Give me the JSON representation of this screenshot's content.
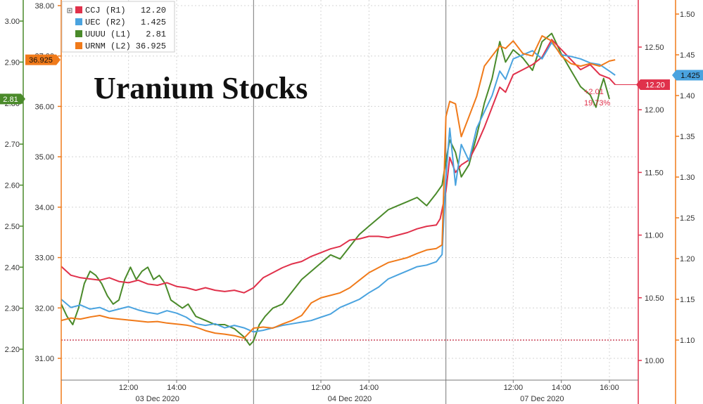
{
  "chart_data": {
    "type": "line",
    "title": "Uranium Stocks",
    "x_labels": [
      {
        "time": "12:00",
        "day": "03 Dec 2020",
        "x": 0.35
      },
      {
        "time": "14:00",
        "day": "03 Dec 2020",
        "x": 0.6
      },
      {
        "time": "12:00",
        "day": "04 Dec 2020",
        "x": 1.35
      },
      {
        "time": "14:00",
        "day": "04 Dec 2020",
        "x": 1.6
      },
      {
        "time": "12:00",
        "day": "07 Dec 2020",
        "x": 2.35
      },
      {
        "time": "14:00",
        "day": "07 Dec 2020",
        "x": 2.6
      },
      {
        "time": "16:00",
        "day": "07 Dec 2020",
        "x": 2.85
      }
    ],
    "day_labels": [
      {
        "label": "03 Dec 2020",
        "x": 0.5
      },
      {
        "label": "04 Dec 2020",
        "x": 1.5
      },
      {
        "label": "07 Dec 2020",
        "x": 2.5
      }
    ],
    "day_boundaries": [
      0,
      1,
      2,
      3
    ],
    "x_range": [
      0,
      3
    ],
    "grid": true,
    "legend_position": "top-left",
    "axes": {
      "L1": {
        "side": "left",
        "color": "#4a8a2a",
        "range": [
          2.15,
          3.05
        ],
        "ticks": [
          "2.20",
          "2.30",
          "2.40",
          "2.50",
          "2.60",
          "2.70",
          "2.80",
          "2.90",
          "3.00"
        ]
      },
      "L2": {
        "side": "left",
        "color": "#f07a1a",
        "range": [
          30.75,
          38.1
        ],
        "ticks": [
          "31.00",
          "32.00",
          "33.00",
          "34.00",
          "35.00",
          "36.00",
          "37.00",
          "38.00"
        ]
      },
      "R1": {
        "side": "right",
        "color": "#e0314b",
        "range": [
          9.93,
          12.75
        ],
        "ticks": [
          "10.00",
          "10.50",
          "11.00",
          "11.50",
          "12.00",
          "12.50"
        ]
      },
      "R2": {
        "side": "right",
        "color": "#f07a1a",
        "range": [
          1.04,
          1.52
        ],
        "ticks": [
          "1.10",
          "1.15",
          "1.20",
          "1.25",
          "1.30",
          "1.35",
          "1.40",
          "1.45",
          "1.50"
        ]
      }
    },
    "series": [
      {
        "name": "CCJ (R1)",
        "legend_value": "12.20",
        "axis": "R1",
        "color": "#e0314b",
        "points": [
          [
            0.0,
            10.75
          ],
          [
            0.05,
            10.68
          ],
          [
            0.1,
            10.66
          ],
          [
            0.15,
            10.65
          ],
          [
            0.2,
            10.64
          ],
          [
            0.25,
            10.66
          ],
          [
            0.3,
            10.63
          ],
          [
            0.35,
            10.62
          ],
          [
            0.4,
            10.64
          ],
          [
            0.45,
            10.61
          ],
          [
            0.5,
            10.6
          ],
          [
            0.55,
            10.62
          ],
          [
            0.6,
            10.59
          ],
          [
            0.65,
            10.58
          ],
          [
            0.7,
            10.56
          ],
          [
            0.75,
            10.58
          ],
          [
            0.8,
            10.56
          ],
          [
            0.85,
            10.55
          ],
          [
            0.9,
            10.56
          ],
          [
            0.95,
            10.54
          ],
          [
            1.0,
            10.58
          ],
          [
            1.05,
            10.66
          ],
          [
            1.1,
            10.7
          ],
          [
            1.15,
            10.74
          ],
          [
            1.2,
            10.77
          ],
          [
            1.25,
            10.79
          ],
          [
            1.3,
            10.83
          ],
          [
            1.35,
            10.86
          ],
          [
            1.4,
            10.89
          ],
          [
            1.45,
            10.91
          ],
          [
            1.5,
            10.96
          ],
          [
            1.55,
            10.97
          ],
          [
            1.6,
            10.99
          ],
          [
            1.65,
            10.99
          ],
          [
            1.7,
            10.98
          ],
          [
            1.75,
            11.0
          ],
          [
            1.8,
            11.02
          ],
          [
            1.85,
            11.05
          ],
          [
            1.9,
            11.07
          ],
          [
            1.95,
            11.08
          ],
          [
            1.97,
            11.13
          ],
          [
            2.0,
            11.35
          ],
          [
            2.02,
            11.62
          ],
          [
            2.05,
            11.5
          ],
          [
            2.08,
            11.56
          ],
          [
            2.12,
            11.6
          ],
          [
            2.16,
            11.72
          ],
          [
            2.2,
            11.86
          ],
          [
            2.24,
            12.02
          ],
          [
            2.28,
            12.18
          ],
          [
            2.31,
            12.14
          ],
          [
            2.35,
            12.28
          ],
          [
            2.4,
            12.32
          ],
          [
            2.45,
            12.36
          ],
          [
            2.5,
            12.42
          ],
          [
            2.55,
            12.56
          ],
          [
            2.6,
            12.48
          ],
          [
            2.65,
            12.4
          ],
          [
            2.7,
            12.32
          ],
          [
            2.75,
            12.36
          ],
          [
            2.8,
            12.28
          ],
          [
            2.85,
            12.25
          ],
          [
            2.88,
            12.2
          ]
        ]
      },
      {
        "name": "UEC (R2)",
        "legend_value": "1.425",
        "axis": "R2",
        "color": "#4aa3df",
        "points": [
          [
            0.0,
            1.15
          ],
          [
            0.05,
            1.14
          ],
          [
            0.1,
            1.143
          ],
          [
            0.15,
            1.138
          ],
          [
            0.2,
            1.14
          ],
          [
            0.25,
            1.135
          ],
          [
            0.3,
            1.138
          ],
          [
            0.35,
            1.141
          ],
          [
            0.4,
            1.137
          ],
          [
            0.45,
            1.134
          ],
          [
            0.5,
            1.132
          ],
          [
            0.55,
            1.136
          ],
          [
            0.6,
            1.133
          ],
          [
            0.65,
            1.128
          ],
          [
            0.7,
            1.12
          ],
          [
            0.75,
            1.118
          ],
          [
            0.8,
            1.12
          ],
          [
            0.85,
            1.115
          ],
          [
            0.9,
            1.118
          ],
          [
            0.95,
            1.115
          ],
          [
            1.0,
            1.11
          ],
          [
            1.05,
            1.112
          ],
          [
            1.1,
            1.115
          ],
          [
            1.15,
            1.118
          ],
          [
            1.2,
            1.12
          ],
          [
            1.25,
            1.122
          ],
          [
            1.3,
            1.124
          ],
          [
            1.35,
            1.128
          ],
          [
            1.4,
            1.132
          ],
          [
            1.45,
            1.14
          ],
          [
            1.5,
            1.145
          ],
          [
            1.55,
            1.15
          ],
          [
            1.6,
            1.158
          ],
          [
            1.65,
            1.165
          ],
          [
            1.7,
            1.175
          ],
          [
            1.75,
            1.18
          ],
          [
            1.8,
            1.185
          ],
          [
            1.85,
            1.19
          ],
          [
            1.9,
            1.192
          ],
          [
            1.95,
            1.196
          ],
          [
            1.98,
            1.205
          ],
          [
            2.0,
            1.3
          ],
          [
            2.02,
            1.36
          ],
          [
            2.05,
            1.29
          ],
          [
            2.08,
            1.34
          ],
          [
            2.12,
            1.32
          ],
          [
            2.16,
            1.36
          ],
          [
            2.2,
            1.38
          ],
          [
            2.24,
            1.4
          ],
          [
            2.28,
            1.43
          ],
          [
            2.31,
            1.42
          ],
          [
            2.35,
            1.445
          ],
          [
            2.4,
            1.45
          ],
          [
            2.45,
            1.455
          ],
          [
            2.5,
            1.445
          ],
          [
            2.55,
            1.465
          ],
          [
            2.6,
            1.45
          ],
          [
            2.65,
            1.448
          ],
          [
            2.7,
            1.445
          ],
          [
            2.75,
            1.44
          ],
          [
            2.8,
            1.438
          ],
          [
            2.85,
            1.43
          ],
          [
            2.88,
            1.425
          ]
        ]
      },
      {
        "name": "UUUU (L1)",
        "legend_value": "2.81",
        "axis": "L1",
        "color": "#4a8a2a",
        "points": [
          [
            0.0,
            2.31
          ],
          [
            0.03,
            2.28
          ],
          [
            0.06,
            2.26
          ],
          [
            0.09,
            2.3
          ],
          [
            0.12,
            2.36
          ],
          [
            0.15,
            2.39
          ],
          [
            0.18,
            2.38
          ],
          [
            0.21,
            2.36
          ],
          [
            0.24,
            2.33
          ],
          [
            0.27,
            2.31
          ],
          [
            0.3,
            2.32
          ],
          [
            0.33,
            2.37
          ],
          [
            0.36,
            2.4
          ],
          [
            0.39,
            2.37
          ],
          [
            0.42,
            2.39
          ],
          [
            0.45,
            2.4
          ],
          [
            0.48,
            2.37
          ],
          [
            0.51,
            2.38
          ],
          [
            0.54,
            2.36
          ],
          [
            0.57,
            2.32
          ],
          [
            0.6,
            2.31
          ],
          [
            0.63,
            2.3
          ],
          [
            0.66,
            2.31
          ],
          [
            0.7,
            2.28
          ],
          [
            0.75,
            2.27
          ],
          [
            0.8,
            2.26
          ],
          [
            0.85,
            2.26
          ],
          [
            0.9,
            2.25
          ],
          [
            0.95,
            2.23
          ],
          [
            0.98,
            2.21
          ],
          [
            1.0,
            2.22
          ],
          [
            1.03,
            2.26
          ],
          [
            1.06,
            2.28
          ],
          [
            1.1,
            2.3
          ],
          [
            1.15,
            2.31
          ],
          [
            1.2,
            2.34
          ],
          [
            1.25,
            2.37
          ],
          [
            1.3,
            2.39
          ],
          [
            1.35,
            2.41
          ],
          [
            1.4,
            2.43
          ],
          [
            1.45,
            2.42
          ],
          [
            1.5,
            2.45
          ],
          [
            1.55,
            2.48
          ],
          [
            1.6,
            2.5
          ],
          [
            1.65,
            2.52
          ],
          [
            1.7,
            2.54
          ],
          [
            1.75,
            2.55
          ],
          [
            1.8,
            2.56
          ],
          [
            1.85,
            2.57
          ],
          [
            1.9,
            2.55
          ],
          [
            1.95,
            2.58
          ],
          [
            1.98,
            2.6
          ],
          [
            2.0,
            2.66
          ],
          [
            2.02,
            2.71
          ],
          [
            2.05,
            2.68
          ],
          [
            2.08,
            2.62
          ],
          [
            2.12,
            2.65
          ],
          [
            2.16,
            2.72
          ],
          [
            2.2,
            2.8
          ],
          [
            2.24,
            2.86
          ],
          [
            2.28,
            2.95
          ],
          [
            2.31,
            2.9
          ],
          [
            2.35,
            2.93
          ],
          [
            2.4,
            2.91
          ],
          [
            2.45,
            2.88
          ],
          [
            2.5,
            2.95
          ],
          [
            2.55,
            2.97
          ],
          [
            2.6,
            2.92
          ],
          [
            2.65,
            2.88
          ],
          [
            2.7,
            2.84
          ],
          [
            2.75,
            2.82
          ],
          [
            2.78,
            2.79
          ],
          [
            2.8,
            2.83
          ],
          [
            2.82,
            2.86
          ],
          [
            2.85,
            2.81
          ]
        ]
      },
      {
        "name": "URNM (L2)",
        "legend_value": "36.925",
        "axis": "L2",
        "color": "#f07a1a",
        "points": [
          [
            0.0,
            31.75
          ],
          [
            0.05,
            31.8
          ],
          [
            0.1,
            31.78
          ],
          [
            0.15,
            31.82
          ],
          [
            0.2,
            31.85
          ],
          [
            0.25,
            31.8
          ],
          [
            0.3,
            31.78
          ],
          [
            0.35,
            31.76
          ],
          [
            0.4,
            31.74
          ],
          [
            0.45,
            31.72
          ],
          [
            0.5,
            31.73
          ],
          [
            0.55,
            31.7
          ],
          [
            0.6,
            31.68
          ],
          [
            0.65,
            31.66
          ],
          [
            0.7,
            31.62
          ],
          [
            0.75,
            31.55
          ],
          [
            0.8,
            31.5
          ],
          [
            0.85,
            31.48
          ],
          [
            0.9,
            31.45
          ],
          [
            0.95,
            31.4
          ],
          [
            1.0,
            31.6
          ],
          [
            1.05,
            31.62
          ],
          [
            1.1,
            31.6
          ],
          [
            1.15,
            31.68
          ],
          [
            1.2,
            31.75
          ],
          [
            1.25,
            31.85
          ],
          [
            1.3,
            32.1
          ],
          [
            1.35,
            32.2
          ],
          [
            1.4,
            32.25
          ],
          [
            1.45,
            32.3
          ],
          [
            1.5,
            32.4
          ],
          [
            1.55,
            32.55
          ],
          [
            1.6,
            32.7
          ],
          [
            1.65,
            32.8
          ],
          [
            1.7,
            32.9
          ],
          [
            1.75,
            32.95
          ],
          [
            1.8,
            33.0
          ],
          [
            1.85,
            33.08
          ],
          [
            1.9,
            33.15
          ],
          [
            1.95,
            33.18
          ],
          [
            1.98,
            33.25
          ],
          [
            2.0,
            35.8
          ],
          [
            2.02,
            36.1
          ],
          [
            2.05,
            36.05
          ],
          [
            2.08,
            35.4
          ],
          [
            2.12,
            35.8
          ],
          [
            2.16,
            36.2
          ],
          [
            2.2,
            36.8
          ],
          [
            2.24,
            37.0
          ],
          [
            2.28,
            37.2
          ],
          [
            2.31,
            37.15
          ],
          [
            2.35,
            37.3
          ],
          [
            2.4,
            37.05
          ],
          [
            2.45,
            37.0
          ],
          [
            2.5,
            37.4
          ],
          [
            2.55,
            37.3
          ],
          [
            2.6,
            37.0
          ],
          [
            2.65,
            36.85
          ],
          [
            2.7,
            36.8
          ],
          [
            2.75,
            36.85
          ],
          [
            2.8,
            36.8
          ],
          [
            2.85,
            36.9
          ],
          [
            2.88,
            36.925
          ]
        ]
      }
    ],
    "flags": {
      "URNM": "36.925",
      "UUUU": "2.81",
      "CCJ": "12.20",
      "UEC": "1.425"
    },
    "annotation": {
      "change": "+2.01",
      "pct": "19.73%"
    },
    "reference_line": {
      "axis": "R2",
      "value": 1.1,
      "color": "#c0243a"
    }
  }
}
